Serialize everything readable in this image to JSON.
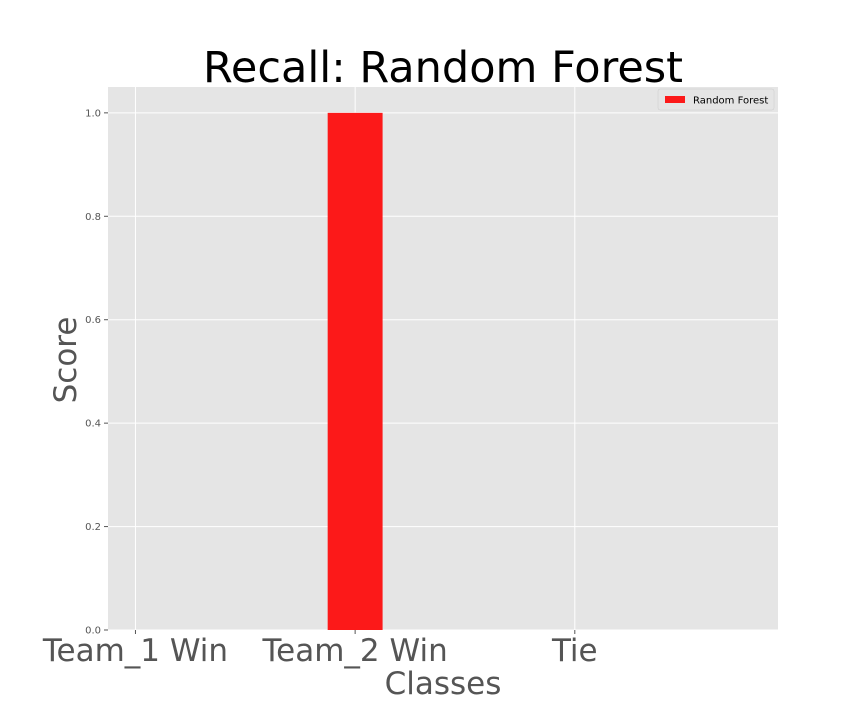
{
  "chart_data": {
    "type": "bar",
    "title": "Recall: Random Forest",
    "xlabel": "Classes",
    "ylabel": "Score",
    "categories": [
      "Team_1 Win",
      "Team_2 Win",
      "Tie"
    ],
    "series": [
      {
        "name": "Random Forest",
        "values": [
          0.0,
          1.0,
          0.0
        ],
        "color": "#fc1919"
      }
    ],
    "ylim": [
      0,
      1.05
    ],
    "yticks": [
      0.0,
      0.2,
      0.4,
      0.6,
      0.8,
      1.0
    ],
    "ytick_labels": [
      "0.0",
      "0.2",
      "0.4",
      "0.6",
      "0.8",
      "1.0"
    ],
    "grid": true,
    "background_color": "#e5e5e5",
    "grid_color": "#ffffff",
    "legend_position": "top-right"
  }
}
